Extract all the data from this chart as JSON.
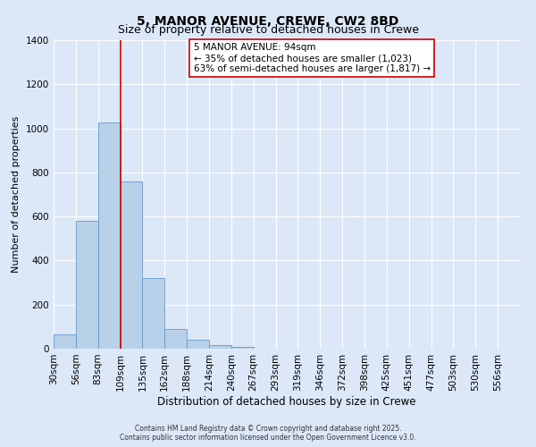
{
  "title": "5, MANOR AVENUE, CREWE, CW2 8BD",
  "subtitle": "Size of property relative to detached houses in Crewe",
  "xlabel": "Distribution of detached houses by size in Crewe",
  "ylabel": "Number of detached properties",
  "bar_values": [
    65,
    580,
    1025,
    760,
    320,
    90,
    40,
    18,
    8,
    2,
    0,
    0,
    2,
    0,
    0,
    0,
    0,
    0,
    0,
    0,
    0
  ],
  "bar_labels": [
    "30sqm",
    "56sqm",
    "83sqm",
    "109sqm",
    "135sqm",
    "162sqm",
    "188sqm",
    "214sqm",
    "240sqm",
    "267sqm",
    "293sqm",
    "319sqm",
    "346sqm",
    "372sqm",
    "398sqm",
    "425sqm",
    "451sqm",
    "477sqm",
    "503sqm",
    "530sqm",
    "556sqm"
  ],
  "bar_color": "#b8d0e8",
  "bar_edge_color": "#6699cc",
  "vline_x": 3,
  "vline_color": "#cc0000",
  "ylim": [
    0,
    1400
  ],
  "yticks": [
    0,
    200,
    400,
    600,
    800,
    1000,
    1200,
    1400
  ],
  "annotation_title": "5 MANOR AVENUE: 94sqm",
  "annotation_line1": "← 35% of detached houses are smaller (1,023)",
  "annotation_line2": "63% of semi-detached houses are larger (1,817) →",
  "annotation_box_color": "#ffffff",
  "annotation_box_edge": "#cc0000",
  "footer1": "Contains HM Land Registry data © Crown copyright and database right 2025.",
  "footer2": "Contains public sector information licensed under the Open Government Licence v3.0.",
  "bg_color": "#dce8f8",
  "plot_bg_color": "#dce8f8",
  "title_fontsize": 10,
  "subtitle_fontsize": 9,
  "xlabel_fontsize": 8.5,
  "ylabel_fontsize": 8,
  "tick_fontsize": 7.5,
  "annot_fontsize": 7.5,
  "footer_fontsize": 5.5
}
